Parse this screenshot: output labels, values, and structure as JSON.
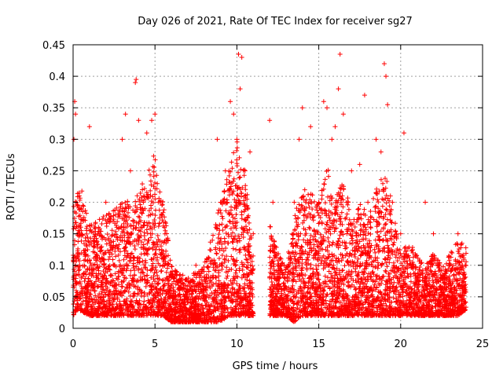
{
  "chart_data": {
    "type": "scatter",
    "title": "Day 026 of 2021, Rate Of TEC Index for receiver sg27",
    "xlabel": "GPS time / hours",
    "ylabel": "ROTI / TECUs",
    "xlim": [
      0,
      25
    ],
    "ylim": [
      0,
      0.45
    ],
    "xticks": [
      "0",
      "5",
      "10",
      "15",
      "20",
      "25"
    ],
    "yticks": [
      "0",
      "0.05",
      "0.1",
      "0.15",
      "0.2",
      "0.25",
      "0.3",
      "0.35",
      "0.4",
      "0.45"
    ],
    "grid": true,
    "marker": "plus",
    "color": "#ff0000",
    "series": [
      {
        "x": [
          0.05,
          0.1,
          0.15,
          0.2,
          0.25,
          0.3,
          0.4,
          0.5,
          0.7,
          1.0,
          1.1,
          1.5,
          2.0,
          2.2,
          2.5,
          2.8,
          3.0,
          3.2,
          3.5,
          3.8,
          3.85,
          4.0,
          4.3,
          4.5,
          4.8,
          5.0,
          5.2,
          5.4,
          5.7,
          6.0,
          6.5,
          7.0,
          7.5,
          8.0,
          8.5,
          8.8,
          9.0,
          9.3,
          9.6,
          9.8,
          10.0,
          10.1,
          10.2,
          10.3,
          10.5,
          10.8,
          11.0,
          12.0,
          12.2,
          12.5,
          13.5,
          13.8,
          14.0,
          14.2,
          14.5,
          15.0,
          15.3,
          15.5,
          15.8,
          16.0,
          16.2,
          16.3,
          16.5,
          16.8,
          17.0,
          17.5,
          17.8,
          18.0,
          18.5,
          18.8,
          19.0,
          19.1,
          19.2,
          19.5,
          20.0,
          20.2,
          20.5,
          21.0,
          21.5,
          22.0,
          22.5,
          23.0,
          23.5,
          23.9
        ],
        "y": [
          0.3,
          0.36,
          0.34,
          0.2,
          0.15,
          0.12,
          0.1,
          0.08,
          0.12,
          0.32,
          0.1,
          0.15,
          0.2,
          0.12,
          0.1,
          0.18,
          0.3,
          0.34,
          0.25,
          0.39,
          0.395,
          0.33,
          0.2,
          0.31,
          0.33,
          0.34,
          0.2,
          0.12,
          0.08,
          0.05,
          0.04,
          0.05,
          0.1,
          0.06,
          0.08,
          0.3,
          0.2,
          0.25,
          0.36,
          0.34,
          0.3,
          0.435,
          0.38,
          0.43,
          0.25,
          0.28,
          0.15,
          0.33,
          0.2,
          0.1,
          0.2,
          0.3,
          0.35,
          0.2,
          0.32,
          0.2,
          0.36,
          0.35,
          0.3,
          0.32,
          0.38,
          0.435,
          0.34,
          0.2,
          0.25,
          0.26,
          0.37,
          0.2,
          0.3,
          0.28,
          0.42,
          0.4,
          0.355,
          0.2,
          0.15,
          0.31,
          0.1,
          0.08,
          0.2,
          0.15,
          0.08,
          0.1,
          0.15,
          0.08
        ],
        "band_low": [
          0.03,
          0.03,
          0.03,
          0.02,
          0.02,
          0.03,
          0.02,
          0.02,
          0.02,
          0.02,
          0.02,
          0.02,
          0.02,
          0.02,
          0.02,
          0.02,
          0.02,
          0.02,
          0.02,
          0.02,
          0.02,
          0.02,
          0.02,
          0.02,
          0.02,
          0.02,
          0.02,
          0.02,
          0.01,
          0.01,
          0.01,
          0.01,
          0.01,
          0.01,
          0.01,
          0.01,
          0.01,
          0.01,
          0.02,
          0.02,
          0.02,
          0.02,
          0.02,
          0.02,
          0.02,
          0.02,
          0.02,
          0.02,
          0.02,
          0.02,
          0.02,
          0.01,
          0.01,
          0.01,
          0.02,
          0.02,
          0.02,
          0.02,
          0.02,
          0.02,
          0.02,
          0.02,
          0.02,
          0.02,
          0.02,
          0.02,
          0.02,
          0.02,
          0.02,
          0.02,
          0.02,
          0.02,
          0.02,
          0.02,
          0.02,
          0.02,
          0.02,
          0.02,
          0.02,
          0.02,
          0.02,
          0.02,
          0.02,
          0.02
        ]
      }
    ],
    "density_envelope": {
      "segments": [
        {
          "x": [
            0.0,
            0.3,
            1.0,
            2.0,
            3.0,
            4.0,
            5.0,
            5.5,
            6.0,
            7.0,
            8.0,
            9.0,
            9.5,
            10.0,
            10.5,
            11.0
          ],
          "low": [
            0.02,
            0.03,
            0.02,
            0.02,
            0.02,
            0.02,
            0.02,
            0.02,
            0.01,
            0.01,
            0.01,
            0.01,
            0.02,
            0.02,
            0.02,
            0.02
          ],
          "high": [
            0.2,
            0.25,
            0.17,
            0.18,
            0.2,
            0.22,
            0.28,
            0.2,
            0.1,
            0.08,
            0.1,
            0.2,
            0.25,
            0.3,
            0.25,
            0.12
          ]
        },
        {
          "x": [
            12.0,
            12.5,
            13.0,
            13.5,
            14.0,
            14.5,
            15.0,
            15.5,
            16.0,
            16.5,
            17.0,
            17.5,
            18.0,
            18.5,
            19.0,
            19.5,
            20.0,
            20.5,
            21.0,
            21.5,
            22.0,
            22.5,
            23.0,
            23.5,
            24.0
          ],
          "low": [
            0.02,
            0.02,
            0.02,
            0.01,
            0.02,
            0.02,
            0.02,
            0.02,
            0.02,
            0.02,
            0.02,
            0.02,
            0.02,
            0.02,
            0.02,
            0.02,
            0.02,
            0.02,
            0.02,
            0.02,
            0.02,
            0.02,
            0.02,
            0.02,
            0.03
          ],
          "high": [
            0.17,
            0.12,
            0.1,
            0.18,
            0.22,
            0.22,
            0.2,
            0.26,
            0.2,
            0.25,
            0.17,
            0.2,
            0.18,
            0.22,
            0.25,
            0.2,
            0.12,
            0.14,
            0.12,
            0.1,
            0.12,
            0.1,
            0.12,
            0.14,
            0.13
          ]
        }
      ]
    }
  }
}
